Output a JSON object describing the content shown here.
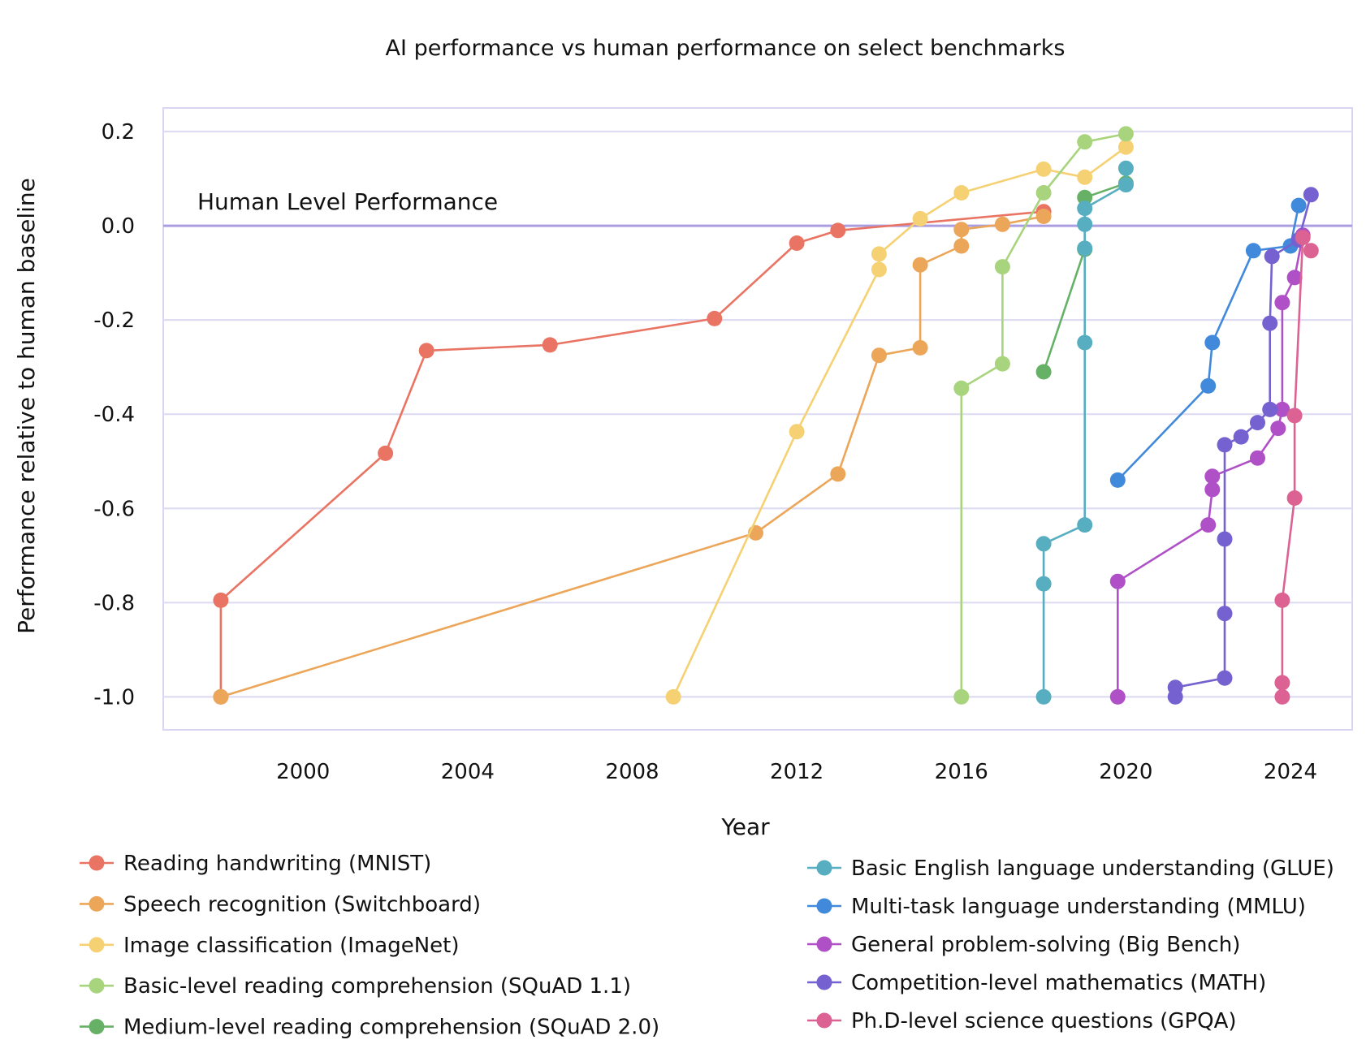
{
  "chart_data": {
    "type": "line",
    "title": "AI performance vs human performance on select benchmarks",
    "xlabel": "Year",
    "ylabel": "Performance relative to human baseline",
    "xlim": [
      1996.6,
      2025.5
    ],
    "ylim": [
      -1.07,
      0.25
    ],
    "x_ticks": [
      2000,
      2004,
      2008,
      2012,
      2016,
      2020,
      2024
    ],
    "y_ticks": [
      0.2,
      0.0,
      -0.2,
      -0.4,
      -0.6,
      -0.8,
      -1.0
    ],
    "y_tick_labels": [
      "0.2",
      "0.0",
      "-0.2",
      "-0.4",
      "-0.6",
      "-0.8",
      "-1.0"
    ],
    "grid": true,
    "reference_line": {
      "y": 0.0,
      "label": "Human Level Performance",
      "color": "#aa9ee0"
    },
    "legend_position": "bottom",
    "series": [
      {
        "name": "Reading handwriting (MNIST)",
        "color": "#ea7463",
        "points": [
          [
            1998,
            -1.0
          ],
          [
            1998,
            -0.795
          ],
          [
            2002,
            -0.483
          ],
          [
            2003,
            -0.265
          ],
          [
            2006,
            -0.253
          ],
          [
            2010,
            -0.197
          ],
          [
            2012,
            -0.037
          ],
          [
            2013,
            -0.01
          ],
          [
            2018,
            0.03
          ]
        ]
      },
      {
        "name": "Speech recognition (Switchboard)",
        "color": "#eca659",
        "points": [
          [
            1998,
            -1.0
          ],
          [
            2011,
            -0.652
          ],
          [
            2013,
            -0.527
          ],
          [
            2014,
            -0.275
          ],
          [
            2015,
            -0.259
          ],
          [
            2015,
            -0.083
          ],
          [
            2016,
            -0.043
          ],
          [
            2016,
            -0.008
          ],
          [
            2017,
            0.003
          ],
          [
            2018,
            0.02
          ]
        ]
      },
      {
        "name": "Image classification (ImageNet)",
        "color": "#f5d173",
        "points": [
          [
            2009,
            -1.0
          ],
          [
            2012,
            -0.437
          ],
          [
            2014,
            -0.093
          ],
          [
            2014,
            -0.06
          ],
          [
            2015,
            0.015
          ],
          [
            2016,
            0.07
          ],
          [
            2018,
            0.12
          ],
          [
            2019,
            0.103
          ],
          [
            2020,
            0.167
          ]
        ]
      },
      {
        "name": "Basic-level reading comprehension (SQuAD 1.1)",
        "color": "#a9d47e",
        "points": [
          [
            2016,
            -1.0
          ],
          [
            2016,
            -0.345
          ],
          [
            2017,
            -0.293
          ],
          [
            2017,
            -0.087
          ],
          [
            2018,
            0.07
          ],
          [
            2019,
            0.178
          ],
          [
            2020,
            0.195
          ]
        ]
      },
      {
        "name": "Medium-level reading comprehension (SQuAD 2.0)",
        "color": "#66b166",
        "points": [
          [
            2018,
            -0.31
          ],
          [
            2019,
            -0.05
          ],
          [
            2019,
            0.06
          ],
          [
            2020,
            0.09
          ]
        ]
      },
      {
        "name": "Basic English language understanding (GLUE)",
        "color": "#56aec0",
        "points": [
          [
            2018,
            -1.0
          ],
          [
            2018,
            -0.76
          ],
          [
            2018,
            -0.675
          ],
          [
            2019,
            -0.635
          ],
          [
            2019,
            -0.248
          ],
          [
            2019,
            -0.048
          ],
          [
            2019,
            0.003
          ],
          [
            2019,
            0.037
          ],
          [
            2020,
            0.087
          ],
          [
            2020,
            0.122
          ]
        ]
      },
      {
        "name": "Multi-task language understanding (MMLU)",
        "color": "#4189db",
        "points": [
          [
            2019.8,
            -0.54
          ],
          [
            2022,
            -0.34
          ],
          [
            2022.1,
            -0.248
          ],
          [
            2023.1,
            -0.053
          ],
          [
            2024,
            -0.043
          ],
          [
            2024.2,
            0.043
          ]
        ]
      },
      {
        "name": "General problem-solving (Big Bench)",
        "color": "#b050c7",
        "points": [
          [
            2019.8,
            -1.0
          ],
          [
            2019.8,
            -0.755
          ],
          [
            2022,
            -0.635
          ],
          [
            2022.1,
            -0.56
          ],
          [
            2022.1,
            -0.532
          ],
          [
            2023.2,
            -0.493
          ],
          [
            2023.7,
            -0.43
          ],
          [
            2023.8,
            -0.39
          ],
          [
            2023.8,
            -0.163
          ],
          [
            2024.1,
            -0.11
          ],
          [
            2024.3,
            -0.02
          ]
        ]
      },
      {
        "name": "Competition-level mathematics (MATH)",
        "color": "#7561cf",
        "points": [
          [
            2021.2,
            -1.0
          ],
          [
            2021.2,
            -0.98
          ],
          [
            2022.4,
            -0.96
          ],
          [
            2022.4,
            -0.823
          ],
          [
            2022.4,
            -0.665
          ],
          [
            2022.4,
            -0.465
          ],
          [
            2022.8,
            -0.448
          ],
          [
            2023.2,
            -0.418
          ],
          [
            2023.5,
            -0.39
          ],
          [
            2023.5,
            -0.207
          ],
          [
            2023.55,
            -0.065
          ],
          [
            2024.2,
            -0.03
          ],
          [
            2024.5,
            0.066
          ]
        ]
      },
      {
        "name": "Ph.D-level science questions (GPQA)",
        "color": "#dc6293",
        "points": [
          [
            2023.8,
            -1.0
          ],
          [
            2023.8,
            -0.97
          ],
          [
            2023.8,
            -0.795
          ],
          [
            2024.1,
            -0.578
          ],
          [
            2024.1,
            -0.403
          ],
          [
            2024.3,
            -0.025
          ],
          [
            2024.5,
            -0.053
          ]
        ]
      }
    ]
  }
}
